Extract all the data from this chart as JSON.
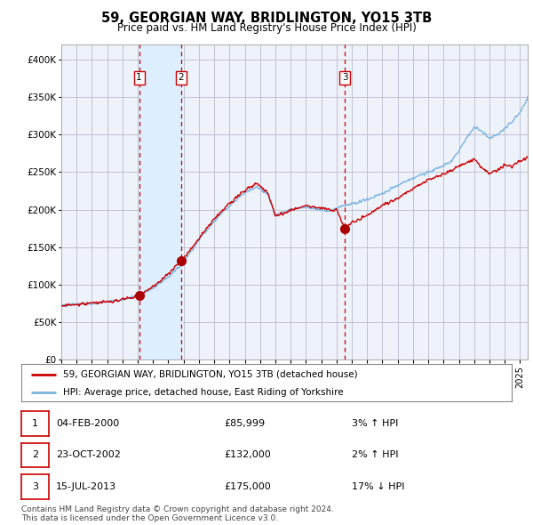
{
  "title": "59, GEORGIAN WAY, BRIDLINGTON, YO15 3TB",
  "subtitle": "Price paid vs. HM Land Registry's House Price Index (HPI)",
  "xlim_start": 1995.0,
  "xlim_end": 2025.5,
  "ylim": [
    0,
    420000
  ],
  "yticks": [
    0,
    50000,
    100000,
    150000,
    200000,
    250000,
    300000,
    350000,
    400000
  ],
  "ytick_labels": [
    "£0",
    "£50K",
    "£100K",
    "£150K",
    "£200K",
    "£250K",
    "£300K",
    "£350K",
    "£400K"
  ],
  "sale_events": [
    {
      "id": 1,
      "year": 2000.09,
      "price": 85999,
      "label": "04-FEB-2000",
      "price_str": "£85,999",
      "hpi_str": "3% ↑ HPI"
    },
    {
      "id": 2,
      "year": 2002.82,
      "price": 132000,
      "label": "23-OCT-2002",
      "price_str": "£132,000",
      "hpi_str": "2% ↑ HPI"
    },
    {
      "id": 3,
      "year": 2013.54,
      "price": 175000,
      "label": "15-JUL-2013",
      "price_str": "£175,000",
      "hpi_str": "17% ↓ HPI"
    }
  ],
  "hpi_line_color": "#7ab4e0",
  "price_line_color": "#cc0000",
  "sale_marker_color": "#aa0000",
  "dashed_line_color": "#cc0000",
  "shade_color": "#ddeeff",
  "background_color": "#eef2fb",
  "grid_color": "#bbbbcc",
  "legend_label_price": "59, GEORGIAN WAY, BRIDLINGTON, YO15 3TB (detached house)",
  "legend_label_hpi": "HPI: Average price, detached house, East Riding of Yorkshire",
  "footer": "Contains HM Land Registry data © Crown copyright and database right 2024.\nThis data is licensed under the Open Government Licence v3.0.",
  "hpi_anchors_x": [
    1995,
    1996,
    1997,
    1998,
    1999,
    2000,
    2001,
    2002,
    2003,
    2004,
    2005,
    2006,
    2007,
    2007.8,
    2008.5,
    2009,
    2009.5,
    2010,
    2011,
    2012,
    2012.5,
    2013,
    2013.5,
    2014,
    2015,
    2016,
    2017,
    2018,
    2019,
    2020,
    2020.5,
    2021,
    2021.5,
    2022,
    2022.5,
    2023,
    2023.5,
    2024,
    2024.5,
    2025,
    2025.5
  ],
  "hpi_anchors_y": [
    72000,
    74000,
    75000,
    77000,
    80000,
    85000,
    95000,
    110000,
    130000,
    160000,
    185000,
    205000,
    223000,
    230000,
    220000,
    193000,
    196000,
    200000,
    203000,
    200000,
    198000,
    202000,
    205000,
    208000,
    213000,
    222000,
    232000,
    242000,
    250000,
    258000,
    265000,
    278000,
    295000,
    310000,
    305000,
    295000,
    300000,
    308000,
    318000,
    330000,
    348000
  ],
  "price_anchors_x": [
    1995,
    1996,
    1997,
    1998,
    1999,
    2000,
    2001,
    2002,
    2003,
    2004,
    2005,
    2006,
    2007,
    2007.8,
    2008.5,
    2009,
    2009.5,
    2010,
    2011,
    2012,
    2012.5,
    2013,
    2013.54,
    2014,
    2015,
    2016,
    2017,
    2018,
    2019,
    2020,
    2020.5,
    2021,
    2021.5,
    2022,
    2022.5,
    2023,
    2023.5,
    2024,
    2024.5,
    2025,
    2025.5
  ],
  "price_anchors_y": [
    72000,
    74000,
    75000,
    77000,
    80000,
    85000,
    97000,
    115000,
    135000,
    162000,
    188000,
    208000,
    226000,
    235000,
    222000,
    192000,
    194000,
    200000,
    205000,
    202000,
    200000,
    200000,
    175000,
    183000,
    193000,
    205000,
    215000,
    228000,
    240000,
    248000,
    252000,
    258000,
    262000,
    268000,
    255000,
    248000,
    252000,
    260000,
    258000,
    265000,
    270000
  ]
}
